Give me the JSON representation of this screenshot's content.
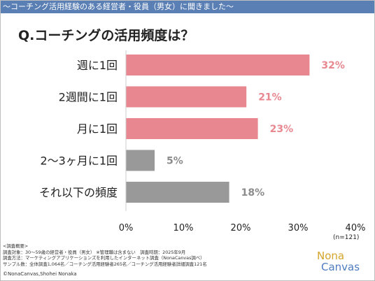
{
  "banner": "〜コーチング活用経験のある経営者・役員（男女）に聞きました〜",
  "question": "Q.コーチングの活用頻度は？",
  "n_label": "(n=121)",
  "survey": {
    "heading": "<調査概要>",
    "line1": "調査対象：30〜59歳の経営者・役員（男女） ※管理職は含まない　調査時期：2025年9月",
    "line2": "調査方法：マーケティングアプリケーションズを利用したインターネット調査（NonaCanvas調べ）",
    "line3": "サンプル数：全体調査1,064名／コーチング活用経験者265名／コーチング活用経験者詳細調査121名"
  },
  "copyright": "©NonaCanvas,Shohei Nonaka",
  "logo": {
    "line1": "Nona",
    "line2": "Canvas"
  },
  "colors": {
    "pink": "#e8878f",
    "gray": "#999999",
    "pink_text": "#e8878f",
    "gray_text": "#8c8c8c"
  },
  "chart_data": {
    "type": "bar",
    "orientation": "horizontal",
    "categories": [
      "週に1回",
      "2週間に1回",
      "月に1回",
      "2〜3ヶ月に1回",
      "それ以下の頻度"
    ],
    "values": [
      32,
      21,
      23,
      5,
      18
    ],
    "value_labels": [
      "32%",
      "21%",
      "23%",
      "5%",
      "18%"
    ],
    "bar_colors": [
      "pink",
      "pink",
      "pink",
      "gray",
      "gray"
    ],
    "xlim": [
      0,
      40
    ],
    "xticks": [
      0,
      10,
      20,
      30,
      40
    ],
    "xtick_labels": [
      "0%",
      "10%",
      "20%",
      "30%",
      "40%"
    ],
    "grid": false
  }
}
